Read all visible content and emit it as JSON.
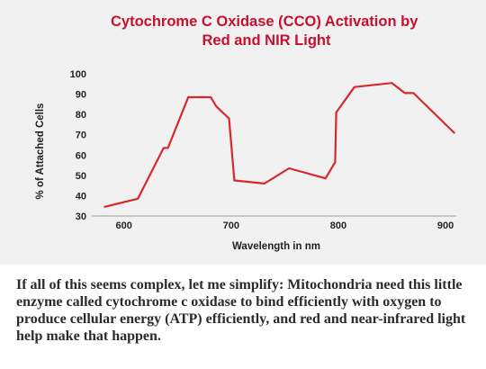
{
  "chart_data": {
    "type": "line",
    "title_lines": [
      "Cytochrome C Oxidase (CCO) Activation by",
      "Red and NIR Light"
    ],
    "xlabel": "Wavelength in nm",
    "ylabel": "% of Attached Cells",
    "xlim": [
      570,
      910
    ],
    "ylim": [
      30,
      100
    ],
    "x_ticks": [
      "600",
      "700",
      "800",
      "900"
    ],
    "y_ticks": [
      "30",
      "40",
      "50",
      "60",
      "70",
      "80",
      "90",
      "100"
    ],
    "grid": false,
    "line_color": "#d62a2a",
    "series": [
      {
        "x": [
          582,
          613,
          637,
          641,
          660,
          681,
          686,
          698,
          703,
          731,
          754,
          788,
          797,
          798,
          815,
          850,
          862,
          870,
          908
        ],
        "y": [
          34.5,
          38.5,
          63.5,
          63.5,
          88.5,
          88.5,
          84,
          78,
          47.5,
          46,
          53.5,
          48.5,
          56.5,
          81,
          93.5,
          95.5,
          90.5,
          90.5,
          71
        ]
      }
    ]
  },
  "caption": "If all of this seems complex, let me simplify: Mitochondria need this little enzyme called cytochrome c oxidase to bind efficiently with oxygen to produce cellular energy (ATP) efficiently, and red and near-infrared light help make that happen."
}
